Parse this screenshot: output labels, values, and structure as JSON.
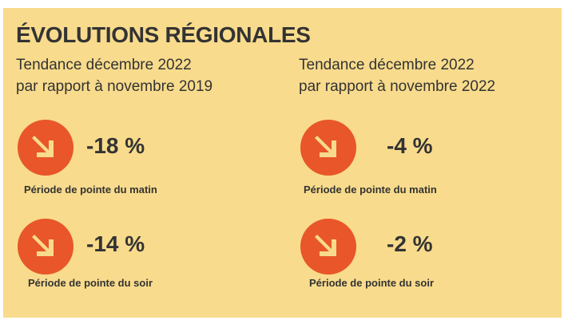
{
  "title": "ÉVOLUTIONS RÉGIONALES",
  "columns": [
    {
      "subtitle_line1": "Tendance décembre 2022",
      "subtitle_line2": "par rapport à novembre 2019",
      "metrics": [
        {
          "value": "-18 %",
          "label": "Période de pointe du matin",
          "icon": "arrow-down-right-icon"
        },
        {
          "value": "-14 %",
          "label": "Période de pointe du soir",
          "icon": "arrow-down-right-icon"
        }
      ]
    },
    {
      "subtitle_line1": "Tendance décembre 2022",
      "subtitle_line2": "par rapport à novembre 2022",
      "metrics": [
        {
          "value": "-4 %",
          "label": "Période de pointe du matin",
          "icon": "arrow-down-right-icon"
        },
        {
          "value": "-2 %",
          "label": "Période de pointe du soir",
          "icon": "arrow-down-right-icon"
        }
      ]
    }
  ],
  "colors": {
    "background": "#f8db8c",
    "icon_circle": "#e8562a",
    "icon_arrow": "#f8db8c",
    "text": "#333333"
  }
}
